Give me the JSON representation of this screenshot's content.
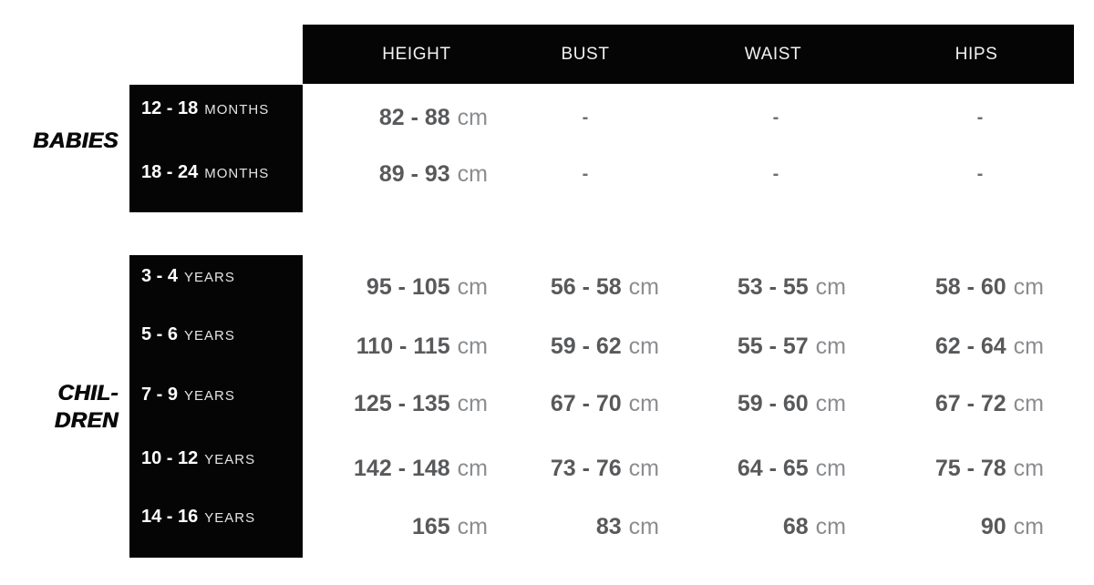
{
  "colors": {
    "panel_black": "#050505",
    "header_text": "#f2f2f2",
    "age_number": "#ffffff",
    "age_unit": "#e3e4e6",
    "value_text": "#58595b",
    "unit_text": "#8a8c8f",
    "dash_text": "#6d6e71",
    "group_label": "#0a0a0a"
  },
  "chart_data": {
    "type": "table",
    "columns": [
      "HEIGHT",
      "BUST",
      "WAIST",
      "HIPS"
    ],
    "unit": "cm",
    "layout": {
      "grid": false,
      "legend": false,
      "header_background": "black",
      "values_alignment": "right"
    },
    "groups": [
      {
        "group_lines": [
          "BABIES"
        ],
        "rows": [
          {
            "age": "12 - 18",
            "age_unit": "MONTHS",
            "cells": [
              {
                "v": "82 - 88",
                "u": "cm"
              },
              {
                "v": "-",
                "u": ""
              },
              {
                "v": "-",
                "u": ""
              },
              {
                "v": "-",
                "u": ""
              }
            ]
          },
          {
            "age": "18 - 24",
            "age_unit": "MONTHS",
            "cells": [
              {
                "v": "89 - 93",
                "u": "cm"
              },
              {
                "v": "-",
                "u": ""
              },
              {
                "v": "-",
                "u": ""
              },
              {
                "v": "-",
                "u": ""
              }
            ]
          }
        ]
      },
      {
        "group_lines": [
          "CHIL-",
          "DREN"
        ],
        "rows": [
          {
            "age": "3 - 4",
            "age_unit": "YEARS",
            "cells": [
              {
                "v": "95 - 105",
                "u": "cm"
              },
              {
                "v": "56 - 58",
                "u": "cm"
              },
              {
                "v": "53 - 55",
                "u": "cm"
              },
              {
                "v": "58 - 60",
                "u": "cm"
              }
            ]
          },
          {
            "age": "5 - 6",
            "age_unit": "YEARS",
            "cells": [
              {
                "v": "110 - 115",
                "u": "cm"
              },
              {
                "v": "59 - 62",
                "u": "cm"
              },
              {
                "v": "55 - 57",
                "u": "cm"
              },
              {
                "v": "62 - 64",
                "u": "cm"
              }
            ]
          },
          {
            "age": "7 - 9",
            "age_unit": "YEARS",
            "cells": [
              {
                "v": "125 - 135",
                "u": "cm"
              },
              {
                "v": "67 - 70",
                "u": "cm"
              },
              {
                "v": "59 - 60",
                "u": "cm"
              },
              {
                "v": "67 - 72",
                "u": "cm"
              }
            ]
          },
          {
            "age": "10 - 12",
            "age_unit": "YEARS",
            "cells": [
              {
                "v": "142 - 148",
                "u": "cm"
              },
              {
                "v": "73 - 76",
                "u": "cm"
              },
              {
                "v": "64 - 65",
                "u": "cm"
              },
              {
                "v": "75 - 78",
                "u": "cm"
              }
            ]
          },
          {
            "age": "14 - 16",
            "age_unit": "YEARS",
            "cells": [
              {
                "v": "165",
                "u": "cm"
              },
              {
                "v": "83",
                "u": "cm"
              },
              {
                "v": "68",
                "u": "cm"
              },
              {
                "v": "90",
                "u": "cm"
              }
            ]
          }
        ]
      }
    ]
  }
}
